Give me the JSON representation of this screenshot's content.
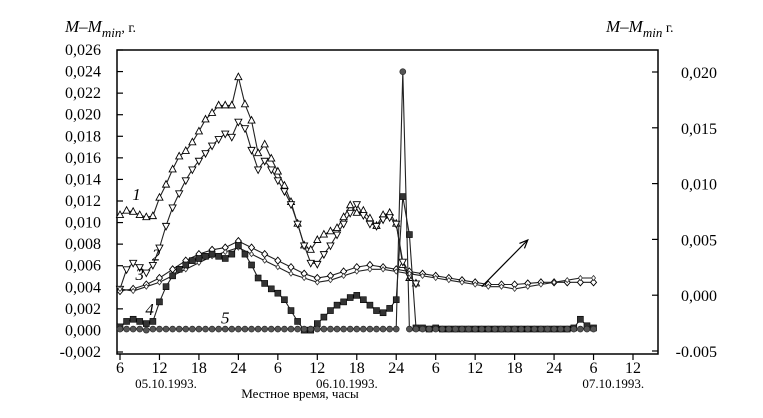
{
  "chart_data": {
    "type": "line",
    "title": "",
    "ylabel_left": "M–M",
    "ylabel_left_sub": "min",
    "ylabel_left_unit": ", г.",
    "ylabel_right": "M–M",
    "ylabel_right_sub": "min",
    "ylabel_right_unit": " г.",
    "xlabel": "Местное время, часы",
    "ylim_left": [
      -0.002,
      0.026
    ],
    "ylim_right": [
      -0.005,
      0.0
    ],
    "xlim": [
      6,
      78
    ],
    "x_ticks": [
      {
        "x": 6,
        "label": "6"
      },
      {
        "x": 12,
        "label": "12"
      },
      {
        "x": 18,
        "label": "18"
      },
      {
        "x": 24,
        "label": "24"
      },
      {
        "x": 30,
        "label": "6"
      },
      {
        "x": 36,
        "label": "12"
      },
      {
        "x": 42,
        "label": "18"
      },
      {
        "x": 48,
        "label": "24"
      },
      {
        "x": 54,
        "label": "6"
      },
      {
        "x": 60,
        "label": "12"
      },
      {
        "x": 66,
        "label": "18"
      },
      {
        "x": 72,
        "label": "24"
      },
      {
        "x": 78,
        "label": "6"
      },
      {
        "x": 84,
        "label": "12"
      }
    ],
    "y_ticks_left": [
      "-0,002",
      "0,000",
      "0,002",
      "0,004",
      "0,006",
      "0,008",
      "0,010",
      "0,012",
      "0,014",
      "0,016",
      "0,018",
      "0,020",
      "0,022",
      "0,024",
      "0,026"
    ],
    "y_ticks_left_values": [
      -0.002,
      0.0,
      0.002,
      0.004,
      0.006,
      0.008,
      0.01,
      0.012,
      0.014,
      0.016,
      0.018,
      0.02,
      0.022,
      0.024,
      0.026
    ],
    "y_ticks_right": [
      "-0.005",
      "0,000",
      "0,005",
      "0,010",
      "0,015",
      "0,020"
    ],
    "y_ticks_right_values": [
      -0.005,
      0.0,
      0.005,
      0.01,
      0.015,
      0.02
    ],
    "dates": [
      {
        "x": 13,
        "label": "05.10.1993."
      },
      {
        "x": 40.5,
        "label": "06.10.1993."
      },
      {
        "x": 81,
        "label": "07.10.1993."
      }
    ],
    "series": [
      {
        "name": "1",
        "axis": "left",
        "marker": "triangle-up",
        "x": [
          6,
          7,
          8,
          9,
          10,
          11,
          12,
          13,
          14,
          15,
          16,
          17,
          18,
          19,
          20,
          21,
          22,
          23,
          24,
          25,
          26,
          27,
          28,
          29,
          30,
          31,
          32,
          33,
          34,
          35,
          36,
          37,
          38,
          39,
          40,
          41,
          42,
          43,
          44,
          45,
          46,
          47,
          48,
          49,
          50,
          51
        ],
        "y": [
          0.0108,
          0.0112,
          0.0111,
          0.0108,
          0.0106,
          0.0107,
          0.0124,
          0.0136,
          0.015,
          0.0162,
          0.0167,
          0.0175,
          0.0185,
          0.0196,
          0.0202,
          0.0209,
          0.0209,
          0.0209,
          0.0235,
          0.021,
          0.0195,
          0.0165,
          0.0173,
          0.016,
          0.0148,
          0.0135,
          0.012,
          0.01,
          0.008,
          0.0076,
          0.0085,
          0.009,
          0.0093,
          0.0096,
          0.0106,
          0.0117,
          0.011,
          0.0112,
          0.0105,
          0.0098,
          0.0108,
          0.011,
          0.01,
          0.0062,
          0.005,
          0.0045
        ]
      },
      {
        "name": "",
        "axis": "left",
        "marker": "triangle-down",
        "x": [
          6,
          7,
          8,
          9,
          10,
          11,
          12,
          13,
          14,
          15,
          16,
          17,
          18,
          19,
          20,
          21,
          22,
          23,
          24,
          25,
          26,
          27,
          28,
          29,
          30,
          31,
          32,
          33,
          34,
          35,
          36,
          37,
          38,
          39,
          40,
          41,
          42,
          43,
          44,
          45,
          46,
          47,
          48,
          49,
          50,
          51
        ],
        "y": [
          0.004,
          0.0058,
          0.0064,
          0.006,
          0.0055,
          0.0062,
          0.0078,
          0.0098,
          0.0115,
          0.0128,
          0.014,
          0.015,
          0.0158,
          0.0165,
          0.0172,
          0.0178,
          0.0183,
          0.018,
          0.0194,
          0.0188,
          0.0168,
          0.015,
          0.0158,
          0.015,
          0.014,
          0.013,
          0.0118,
          0.01,
          0.008,
          0.0064,
          0.0063,
          0.0072,
          0.008,
          0.009,
          0.01,
          0.011,
          0.0118,
          0.0108,
          0.01,
          0.0098,
          0.0104,
          0.0106,
          0.01,
          0.0065,
          0.0052,
          0.0045
        ]
      },
      {
        "name": "2",
        "axis": "left",
        "marker": "open-diamond",
        "x": [
          6,
          8,
          10,
          12,
          14,
          16,
          18,
          20,
          22,
          24,
          26,
          28,
          30,
          32,
          34,
          36,
          38,
          40,
          42,
          44,
          46,
          48,
          50,
          52,
          54,
          56,
          58,
          60,
          62,
          64,
          66,
          68,
          70,
          72,
          74,
          76,
          78
        ],
        "y": [
          0.0038,
          0.004,
          0.0044,
          0.005,
          0.0058,
          0.0066,
          0.0072,
          0.0076,
          0.0078,
          0.0084,
          0.0078,
          0.0072,
          0.0066,
          0.006,
          0.0054,
          0.005,
          0.0052,
          0.0056,
          0.006,
          0.0062,
          0.006,
          0.0058,
          0.0056,
          0.0054,
          0.0052,
          0.005,
          0.0048,
          0.0046,
          0.0044,
          0.0044,
          0.0044,
          0.0045,
          0.0046,
          0.0046,
          0.0046,
          0.0046,
          0.0046
        ]
      },
      {
        "name": "3",
        "axis": "left",
        "marker": "small-diamond",
        "x": [
          6,
          8,
          10,
          12,
          14,
          16,
          18,
          20,
          22,
          24,
          26,
          28,
          30,
          32,
          34,
          36,
          38,
          40,
          42,
          44,
          46,
          48,
          50,
          52,
          54,
          56,
          58,
          60,
          62,
          64,
          66,
          68,
          70,
          72,
          74,
          76,
          78
        ],
        "y": [
          0.004,
          0.0038,
          0.0042,
          0.0046,
          0.0052,
          0.0058,
          0.0064,
          0.007,
          0.0074,
          0.0078,
          0.0072,
          0.0066,
          0.006,
          0.0054,
          0.005,
          0.0046,
          0.0048,
          0.0052,
          0.0056,
          0.0058,
          0.0058,
          0.0056,
          0.0054,
          0.0052,
          0.005,
          0.0048,
          0.0046,
          0.0044,
          0.0042,
          0.0042,
          0.004,
          0.0042,
          0.0044,
          0.0046,
          0.0048,
          0.005,
          0.005
        ]
      },
      {
        "name": "4",
        "axis": "left",
        "marker": "filled-square",
        "x": [
          6,
          7,
          8,
          9,
          10,
          11,
          12,
          13,
          14,
          15,
          16,
          17,
          18,
          19,
          20,
          21,
          22,
          23,
          24,
          25,
          26,
          27,
          28,
          29,
          30,
          31,
          32,
          33,
          34,
          35,
          36,
          37,
          38,
          39,
          40,
          41,
          42,
          43,
          44,
          45,
          46,
          47,
          48,
          49,
          50,
          51,
          52,
          53,
          54,
          55,
          56,
          57,
          58,
          59,
          60,
          61,
          62,
          63,
          64,
          65,
          66,
          67,
          68,
          69,
          70,
          71,
          72,
          73,
          74,
          75,
          76,
          77,
          78
        ],
        "y": [
          0.0005,
          0.001,
          0.0012,
          0.001,
          0.0008,
          0.001,
          0.0028,
          0.0042,
          0.0052,
          0.0058,
          0.0062,
          0.0066,
          0.0068,
          0.007,
          0.0072,
          0.007,
          0.0068,
          0.0072,
          0.008,
          0.0072,
          0.0062,
          0.005,
          0.0045,
          0.004,
          0.0036,
          0.003,
          0.002,
          0.001,
          0.0002,
          0.0002,
          0.0008,
          0.0014,
          0.002,
          0.0025,
          0.0028,
          0.0032,
          0.0034,
          0.003,
          0.0025,
          0.002,
          0.0018,
          0.0022,
          0.003,
          0.0125,
          0.009,
          0.0004,
          0.0004,
          0.0003,
          0.0004,
          0.0003,
          0.0003,
          0.0003,
          0.0003,
          0.0003,
          0.0003,
          0.0003,
          0.0003,
          0.0003,
          0.0003,
          0.0003,
          0.0003,
          0.0003,
          0.0003,
          0.0003,
          0.0003,
          0.0003,
          0.0003,
          0.0003,
          0.0003,
          0.0004,
          0.0012,
          0.0006,
          0.0004
        ]
      },
      {
        "name": "5",
        "axis": "left",
        "marker": "filled-circle",
        "x": [
          6,
          7,
          8,
          9,
          10,
          11,
          12,
          13,
          14,
          15,
          16,
          17,
          18,
          19,
          20,
          21,
          22,
          23,
          24,
          25,
          26,
          27,
          28,
          29,
          30,
          31,
          32,
          33,
          34,
          35,
          36,
          37,
          38,
          39,
          40,
          41,
          42,
          43,
          44,
          45,
          46,
          47,
          48,
          49,
          50,
          51,
          52,
          53,
          54,
          55,
          56,
          57,
          58,
          59,
          60,
          61,
          62,
          63,
          64,
          65,
          66,
          67,
          68,
          69,
          70,
          71,
          72,
          73,
          74,
          75,
          76,
          77,
          78
        ],
        "y": [
          0.0003,
          0.0003,
          0.0003,
          0.0003,
          0.0002,
          0.0003,
          0.0003,
          0.0003,
          0.0003,
          0.0003,
          0.0003,
          0.0003,
          0.0003,
          0.0003,
          0.0003,
          0.0003,
          0.0003,
          0.0003,
          0.0003,
          0.0003,
          0.0003,
          0.0003,
          0.0003,
          0.0003,
          0.0003,
          0.0003,
          0.0003,
          0.0003,
          0.0003,
          0.0003,
          0.0003,
          0.0003,
          0.0003,
          0.0003,
          0.0003,
          0.0003,
          0.0003,
          0.0003,
          0.0003,
          0.0003,
          0.0003,
          0.0003,
          0.0003,
          0.024,
          0.0003,
          0.0003,
          0.0003,
          0.0003,
          0.0003,
          0.0003,
          0.0003,
          0.0003,
          0.0003,
          0.0003,
          0.0003,
          0.0003,
          0.0003,
          0.0003,
          0.0003,
          0.0003,
          0.0003,
          0.0003,
          0.0003,
          0.0003,
          0.0003,
          0.0003,
          0.0003,
          0.0003,
          0.0003,
          0.0003,
          0.0003,
          0.0003,
          0.0003
        ]
      }
    ],
    "series_labels": [
      {
        "name": "1",
        "x": 8.5,
        "y": 0.0122
      },
      {
        "name": "2",
        "x": 11.5,
        "y": 0.0066
      },
      {
        "name": "3",
        "x": 9,
        "y": 0.0048
      },
      {
        "name": "4",
        "x": 10.5,
        "y": 0.0016
      },
      {
        "name": "5",
        "x": 22,
        "y": 0.0008
      }
    ],
    "arrow": {
      "x1": 61,
      "y1": 0.0042,
      "x2": 68,
      "y2": 0.0085
    },
    "grid": false
  }
}
